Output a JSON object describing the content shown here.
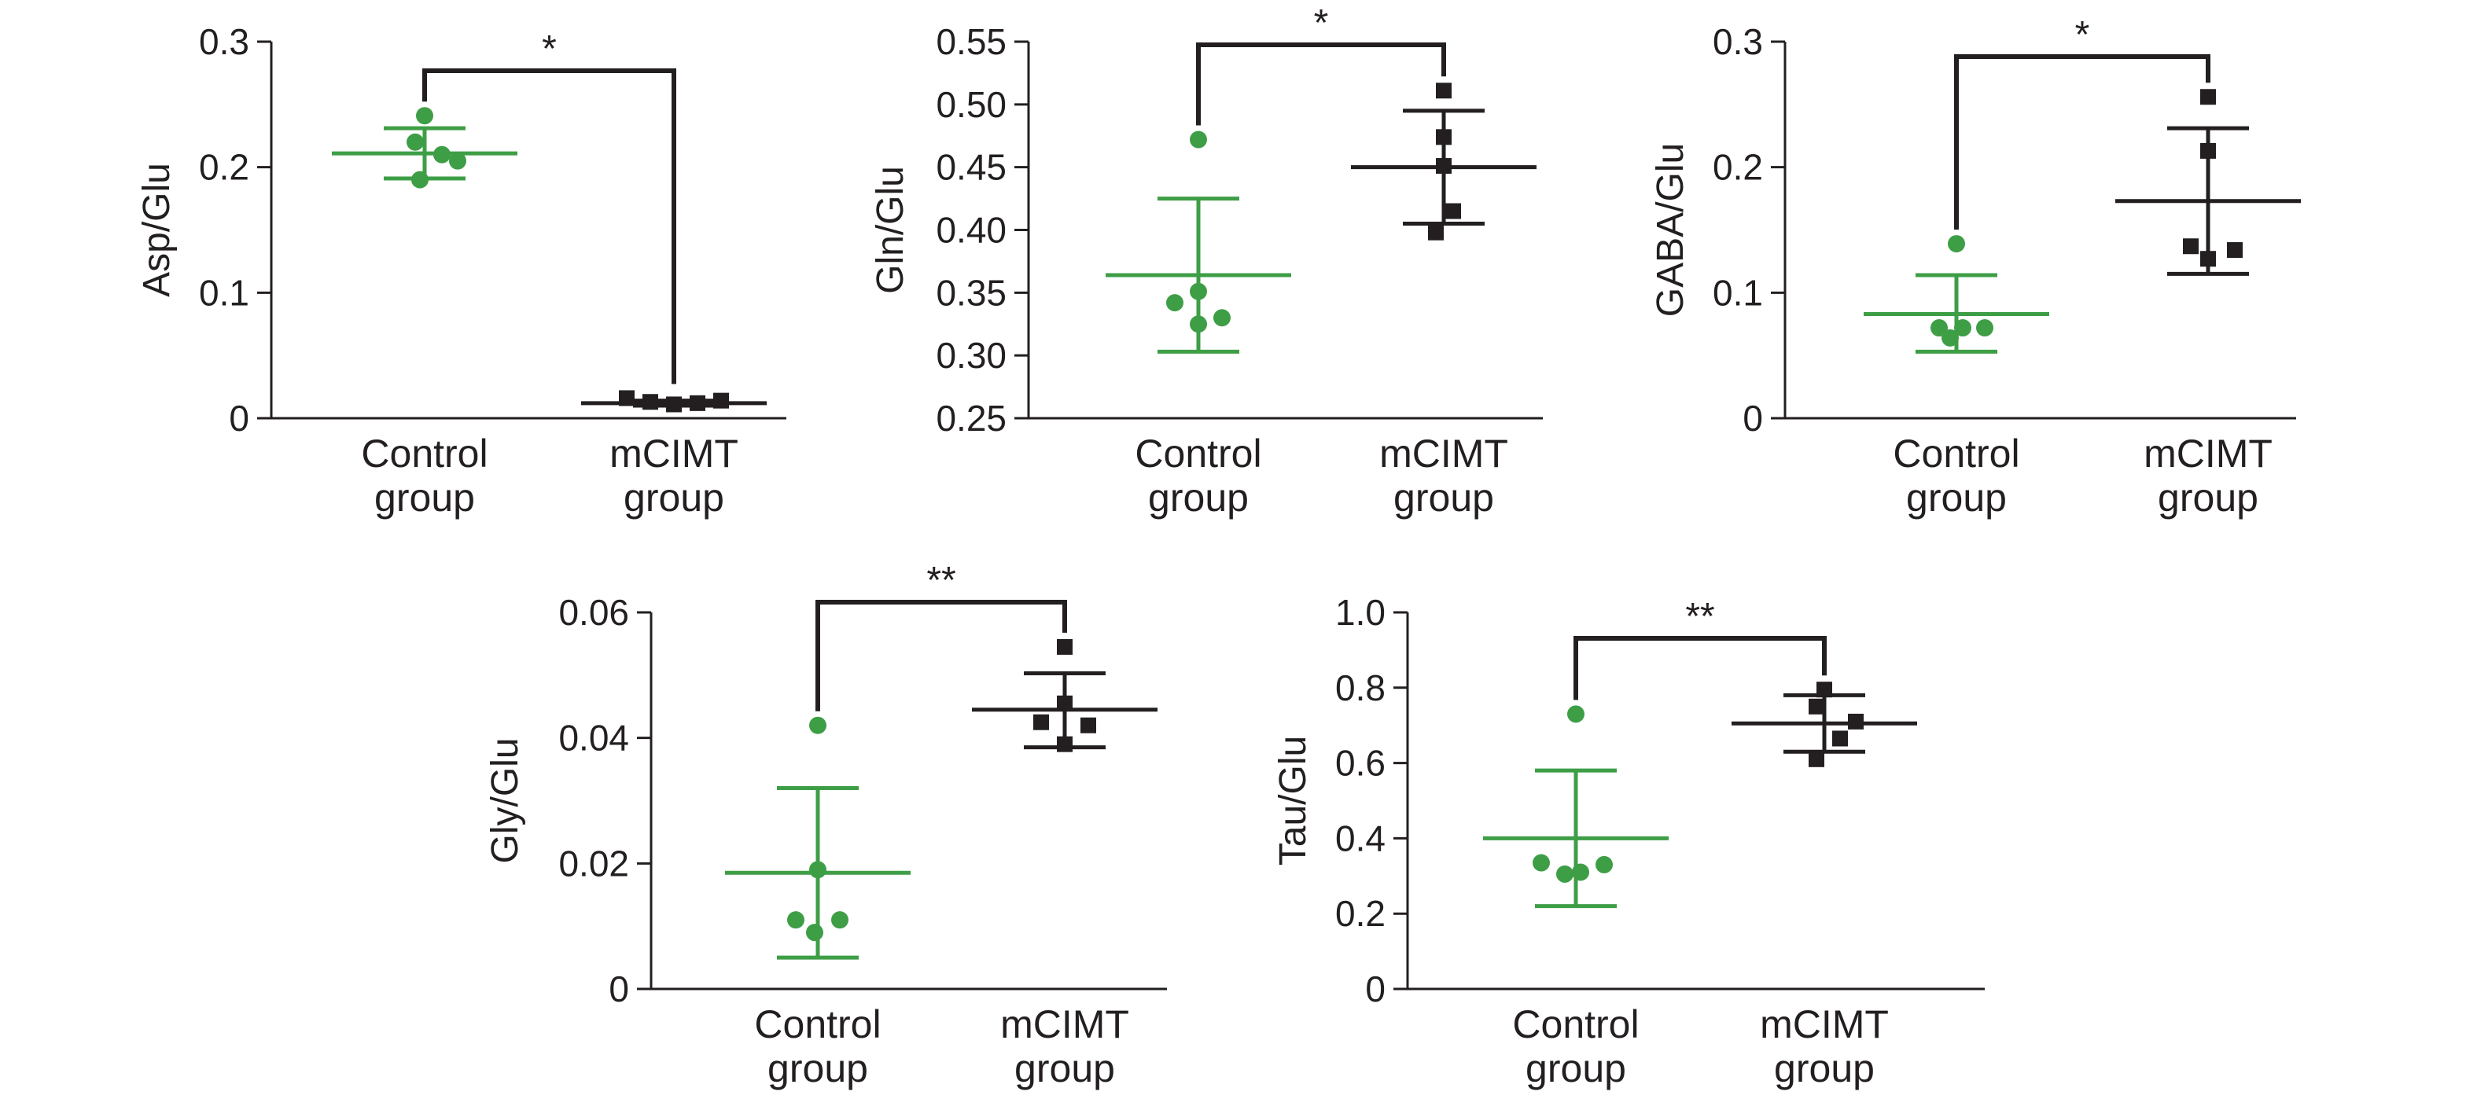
{
  "colors": {
    "control": "#3e9e46",
    "mcimt": "#231f20",
    "axis": "#231f20"
  },
  "chart_data": [
    {
      "id": "asp",
      "type": "scatter",
      "ylabel": "Asp/Glu",
      "ylim": [
        0,
        0.3
      ],
      "yticks": [
        "0",
        "0.1",
        "0.2",
        "0.3"
      ],
      "categories": [
        [
          "Control",
          "group"
        ],
        [
          "mCIMT",
          "group"
        ]
      ],
      "series": [
        {
          "name": "Control group",
          "values": [
            0.241,
            0.22,
            0.21,
            0.205,
            0.19
          ],
          "mean": 0.211,
          "sd_upper": 0.231,
          "sd_lower": 0.191
        },
        {
          "name": "mCIMT group",
          "values": [
            0.016,
            0.013,
            0.011,
            0.012,
            0.014
          ],
          "mean": 0.012,
          "sd_upper": 0.014,
          "sd_lower": 0.01
        }
      ],
      "significance": "*"
    },
    {
      "id": "gln",
      "type": "scatter",
      "ylabel": "Gln/Glu",
      "ylim": [
        0.25,
        0.55
      ],
      "yticks": [
        "0.25",
        "0.30",
        "0.35",
        "0.40",
        "0.45",
        "0.50",
        "0.55"
      ],
      "categories": [
        [
          "Control",
          "group"
        ],
        [
          "mCIMT",
          "group"
        ]
      ],
      "series": [
        {
          "name": "Control group",
          "values": [
            0.472,
            0.351,
            0.342,
            0.33,
            0.325
          ],
          "mean": 0.364,
          "sd_upper": 0.425,
          "sd_lower": 0.303
        },
        {
          "name": "mCIMT group",
          "values": [
            0.511,
            0.474,
            0.451,
            0.415,
            0.398
          ],
          "mean": 0.45,
          "sd_upper": 0.495,
          "sd_lower": 0.405
        }
      ],
      "significance": "*"
    },
    {
      "id": "gaba",
      "type": "scatter",
      "ylabel": "GABA/Glu",
      "ylim": [
        0,
        0.3
      ],
      "yticks": [
        "0",
        "0.1",
        "0.2",
        "0.3"
      ],
      "categories": [
        [
          "Control",
          "group"
        ],
        [
          "mCIMT",
          "group"
        ]
      ],
      "series": [
        {
          "name": "Control group",
          "values": [
            0.139,
            0.072,
            0.072,
            0.072,
            0.064
          ],
          "mean": 0.083,
          "sd_upper": 0.114,
          "sd_lower": 0.053
        },
        {
          "name": "mCIMT group",
          "values": [
            0.256,
            0.213,
            0.137,
            0.134,
            0.127
          ],
          "mean": 0.173,
          "sd_upper": 0.231,
          "sd_lower": 0.115
        }
      ],
      "significance": "*"
    },
    {
      "id": "gly",
      "type": "scatter",
      "ylabel": "Gly/Glu",
      "ylim": [
        0,
        0.06
      ],
      "yticks": [
        "0",
        "0.02",
        "0.04",
        "0.06"
      ],
      "categories": [
        [
          "Control",
          "group"
        ],
        [
          "mCIMT",
          "group"
        ]
      ],
      "series": [
        {
          "name": "Control group",
          "values": [
            0.042,
            0.019,
            0.011,
            0.011,
            0.009
          ],
          "mean": 0.0185,
          "sd_upper": 0.032,
          "sd_lower": 0.005
        },
        {
          "name": "mCIMT group",
          "values": [
            0.0545,
            0.0455,
            0.0425,
            0.042,
            0.039
          ],
          "mean": 0.0445,
          "sd_upper": 0.0503,
          "sd_lower": 0.0385
        }
      ],
      "significance": "**"
    },
    {
      "id": "tau",
      "type": "scatter",
      "ylabel": "Tau/Glu",
      "ylim": [
        0,
        1.0
      ],
      "yticks": [
        "0",
        "0.2",
        "0.4",
        "0.6",
        "0.8",
        "1.0"
      ],
      "categories": [
        [
          "Control",
          "group"
        ],
        [
          "mCIMT",
          "group"
        ]
      ],
      "series": [
        {
          "name": "Control group",
          "values": [
            0.73,
            0.335,
            0.33,
            0.31,
            0.305
          ],
          "mean": 0.4,
          "sd_upper": 0.58,
          "sd_lower": 0.22
        },
        {
          "name": "mCIMT group",
          "values": [
            0.795,
            0.75,
            0.71,
            0.665,
            0.61
          ],
          "mean": 0.705,
          "sd_upper": 0.78,
          "sd_lower": 0.63
        }
      ],
      "significance": "**"
    }
  ]
}
